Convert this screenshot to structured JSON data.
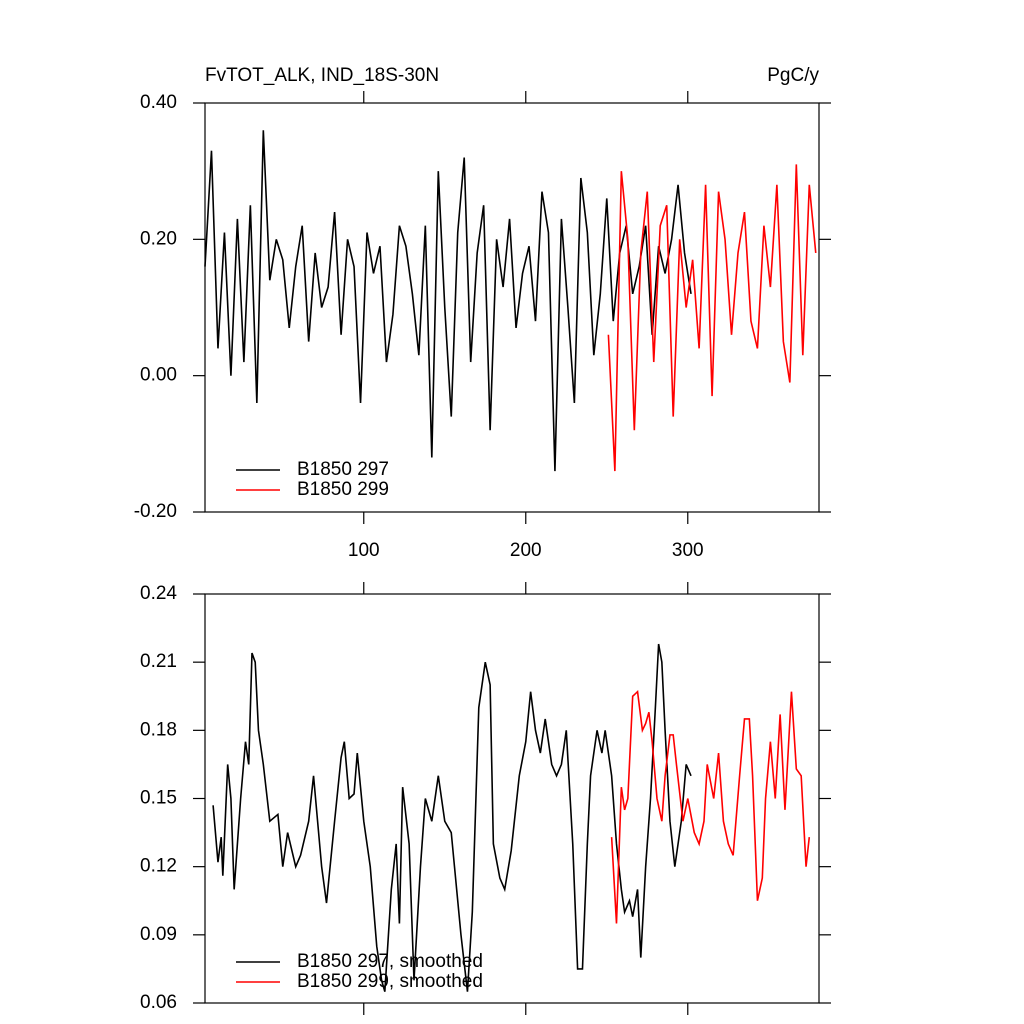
{
  "chart_data": [
    {
      "type": "line",
      "title": "FvTOT_ALK, IND_18S-30N",
      "right_title": "PgC/y",
      "xlim": [
        2,
        381
      ],
      "xticks": [
        100,
        200,
        300
      ],
      "x_tick_labels": true,
      "ylim": [
        -0.2,
        0.4
      ],
      "yticks": [
        {
          "value": -0.2,
          "label": "-0.20"
        },
        {
          "value": 0,
          "label": "0.00"
        },
        {
          "value": 0.2,
          "label": "0.20"
        },
        {
          "value": 0.4,
          "label": "0.40"
        }
      ],
      "legend": "lower left",
      "series": [
        {
          "name": "B1850 297",
          "color": "#000000",
          "x": [
            2,
            6,
            10,
            14,
            18,
            22,
            26,
            30,
            34,
            38,
            42,
            46,
            50,
            54,
            58,
            62,
            66,
            70,
            74,
            78,
            82,
            86,
            90,
            94,
            98,
            102,
            106,
            110,
            114,
            118,
            122,
            126,
            130,
            134,
            138,
            142,
            146,
            150,
            154,
            158,
            162,
            166,
            170,
            174,
            178,
            182,
            186,
            190,
            194,
            198,
            202,
            206,
            210,
            214,
            218,
            222,
            226,
            230,
            234,
            238,
            242,
            246,
            250,
            254,
            258,
            262,
            266,
            270,
            274,
            278,
            282,
            286,
            290,
            294,
            298,
            302
          ],
          "values": [
            0.16,
            0.33,
            0.04,
            0.21,
            0.0,
            0.23,
            0.02,
            0.25,
            -0.04,
            0.36,
            0.14,
            0.2,
            0.17,
            0.07,
            0.16,
            0.22,
            0.05,
            0.18,
            0.1,
            0.13,
            0.24,
            0.06,
            0.2,
            0.16,
            -0.04,
            0.21,
            0.15,
            0.19,
            0.02,
            0.09,
            0.22,
            0.19,
            0.12,
            0.03,
            0.22,
            -0.12,
            0.3,
            0.1,
            -0.06,
            0.21,
            0.32,
            0.02,
            0.18,
            0.25,
            -0.08,
            0.2,
            0.13,
            0.23,
            0.07,
            0.15,
            0.19,
            0.08,
            0.27,
            0.21,
            -0.14,
            0.23,
            0.1,
            -0.04,
            0.29,
            0.21,
            0.03,
            0.12,
            0.26,
            0.08,
            0.18,
            0.22,
            0.12,
            0.16,
            0.22,
            0.06,
            0.19,
            0.15,
            0.2,
            0.28,
            0.18,
            0.12
          ]
        },
        {
          "name": "B1850 299",
          "color": "#ff0000",
          "x": [
            251,
            255,
            259,
            263,
            267,
            271,
            275,
            279,
            283,
            287,
            291,
            295,
            299,
            303,
            307,
            311,
            315,
            319,
            323,
            327,
            331,
            335,
            339,
            343,
            347,
            351,
            355,
            359,
            363,
            367,
            371,
            375,
            379
          ],
          "values": [
            0.06,
            -0.14,
            0.3,
            0.2,
            -0.08,
            0.18,
            0.27,
            0.02,
            0.22,
            0.25,
            -0.06,
            0.2,
            0.1,
            0.17,
            0.04,
            0.28,
            -0.03,
            0.27,
            0.2,
            0.06,
            0.18,
            0.24,
            0.08,
            0.04,
            0.22,
            0.13,
            0.28,
            0.05,
            -0.01,
            0.31,
            0.03,
            0.28,
            0.18
          ]
        }
      ]
    },
    {
      "type": "line",
      "xlim": [
        2,
        381
      ],
      "xticks": [
        100,
        200,
        300
      ],
      "x_tick_labels": false,
      "ylim": [
        0.06,
        0.24
      ],
      "yticks": [
        {
          "value": 0.06,
          "label": "0.06"
        },
        {
          "value": 0.09,
          "label": "0.09"
        },
        {
          "value": 0.12,
          "label": "0.12"
        },
        {
          "value": 0.15,
          "label": "0.15"
        },
        {
          "value": 0.18,
          "label": "0.18"
        },
        {
          "value": 0.21,
          "label": "0.21"
        },
        {
          "value": 0.24,
          "label": "0.24"
        }
      ],
      "legend": "lower left",
      "series": [
        {
          "name": "B1850 297, smoothed",
          "color": "#000000",
          "x": [
            7,
            10,
            12,
            13,
            16,
            18,
            20,
            24,
            27,
            29,
            31,
            33,
            35,
            38,
            42,
            47,
            50,
            53,
            58,
            61,
            66,
            69,
            74,
            77,
            82,
            86,
            88,
            91,
            94,
            96,
            100,
            104,
            108,
            111,
            113,
            117,
            120,
            122,
            124,
            128,
            131,
            135,
            138,
            142,
            146,
            150,
            154,
            156,
            160,
            164,
            167,
            171,
            175,
            178,
            180,
            184,
            187,
            191,
            196,
            200,
            203,
            206,
            209,
            212,
            216,
            219,
            222,
            225,
            229,
            232,
            235,
            238,
            240,
            244,
            247,
            249,
            253,
            256,
            259,
            261,
            264,
            266,
            269,
            271,
            274,
            277,
            280,
            282,
            284,
            286,
            289,
            292,
            296,
            299,
            302
          ],
          "values": [
            0.147,
            0.122,
            0.133,
            0.116,
            0.165,
            0.15,
            0.11,
            0.15,
            0.175,
            0.165,
            0.214,
            0.21,
            0.18,
            0.165,
            0.14,
            0.143,
            0.12,
            0.135,
            0.12,
            0.125,
            0.14,
            0.16,
            0.12,
            0.104,
            0.14,
            0.168,
            0.175,
            0.15,
            0.152,
            0.17,
            0.14,
            0.12,
            0.085,
            0.07,
            0.065,
            0.11,
            0.13,
            0.095,
            0.155,
            0.13,
            0.07,
            0.12,
            0.15,
            0.14,
            0.16,
            0.14,
            0.135,
            0.12,
            0.09,
            0.065,
            0.1,
            0.19,
            0.21,
            0.2,
            0.13,
            0.115,
            0.11,
            0.127,
            0.16,
            0.175,
            0.197,
            0.18,
            0.17,
            0.185,
            0.165,
            0.16,
            0.165,
            0.18,
            0.13,
            0.075,
            0.075,
            0.13,
            0.16,
            0.18,
            0.17,
            0.18,
            0.16,
            0.13,
            0.11,
            0.1,
            0.105,
            0.098,
            0.11,
            0.08,
            0.12,
            0.15,
            0.19,
            0.218,
            0.21,
            0.18,
            0.14,
            0.12,
            0.14,
            0.165,
            0.16
          ]
        },
        {
          "name": "B1850 299, smoothed",
          "color": "#ff0000",
          "x": [
            253,
            256,
            259,
            261,
            263,
            266,
            269,
            272,
            274,
            276,
            278,
            281,
            284,
            286,
            289,
            291,
            293,
            297,
            300,
            304,
            307,
            310,
            312,
            316,
            319,
            322,
            325,
            328,
            332,
            335,
            338,
            340,
            343,
            346,
            348,
            351,
            354,
            357,
            360,
            364,
            367,
            370,
            373,
            375
          ],
          "values": [
            0.133,
            0.095,
            0.155,
            0.145,
            0.15,
            0.195,
            0.197,
            0.18,
            0.183,
            0.188,
            0.175,
            0.15,
            0.14,
            0.16,
            0.178,
            0.178,
            0.165,
            0.14,
            0.15,
            0.135,
            0.13,
            0.14,
            0.165,
            0.15,
            0.17,
            0.14,
            0.13,
            0.125,
            0.16,
            0.185,
            0.185,
            0.16,
            0.105,
            0.115,
            0.15,
            0.175,
            0.15,
            0.187,
            0.145,
            0.197,
            0.163,
            0.16,
            0.12,
            0.133
          ]
        }
      ]
    }
  ]
}
